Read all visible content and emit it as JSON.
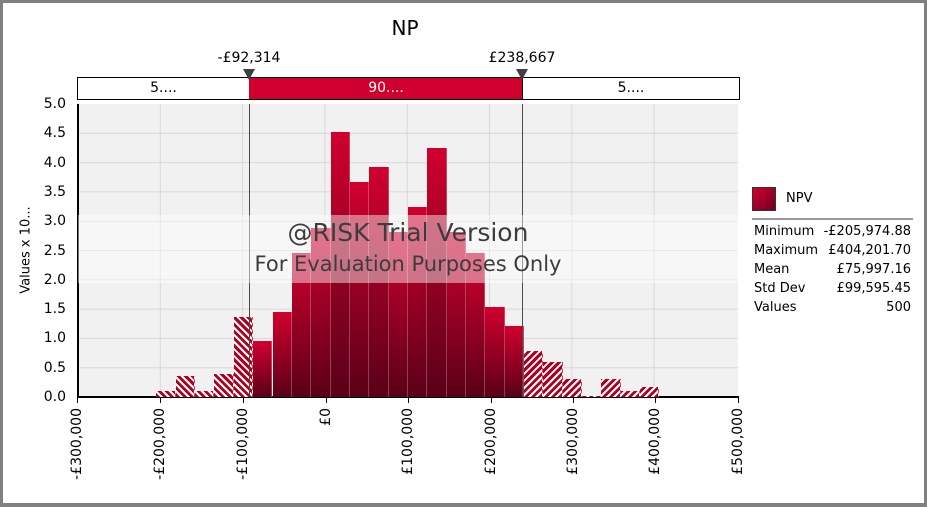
{
  "chart_data": {
    "type": "bar",
    "title": "NP",
    "xlabel": "",
    "ylabel": "Values x 10...",
    "xlim": [
      -300000,
      500000
    ],
    "ylim": [
      0,
      5.0
    ],
    "grid": true,
    "legend_position": "right",
    "x_tick_labels": [
      "-£300,000",
      "-£200,000",
      "-£100,000",
      "£0",
      "£100,000",
      "£200,000",
      "£300,000",
      "£400,000",
      "£500,000"
    ],
    "x_tick_values": [
      -300000,
      -200000,
      -100000,
      0,
      100000,
      200000,
      300000,
      400000,
      500000
    ],
    "y_tick_labels": [
      "0.0",
      "0.5",
      "1.0",
      "1.5",
      "2.0",
      "2.5",
      "3.0",
      "3.5",
      "4.0",
      "4.5",
      "5.0"
    ],
    "bin_start": -206000,
    "bin_width": 23500,
    "series": [
      {
        "name": "NPV",
        "values": [
          0.1,
          0.35,
          0.1,
          0.4,
          1.37,
          0.95,
          1.45,
          2.45,
          2.88,
          4.52,
          3.67,
          3.93,
          2.82,
          3.24,
          4.25,
          2.82,
          2.45,
          1.53,
          1.21,
          0.78,
          0.6,
          0.3,
          0.02,
          0.3,
          0.1,
          0.17
        ]
      }
    ],
    "delimiters": {
      "left_value": "-£92,314",
      "right_value": "£238,667",
      "left_pct_label": "5....",
      "middle_pct_label": "90....",
      "right_pct_label": "5...."
    },
    "annotations": [
      "@RISK Trial Version",
      "For Evaluation Purposes Only"
    ],
    "statistics": {
      "Minimum": "-£205,974.88",
      "Maximum": "£404,201.70",
      "Mean": "£75,997.16",
      "Std Dev": "£99,595.45",
      "Values": "500"
    }
  },
  "header": {
    "title": "NP"
  },
  "delimiter_bar": {
    "left_marker": "-£92,314",
    "right_marker": "£238,667",
    "left_segment": "5....",
    "middle_segment": "90....",
    "right_segment": "5...."
  },
  "axis": {
    "ylabel": "Values x 10...",
    "yticks": [
      "5.0",
      "4.5",
      "4.0",
      "3.5",
      "3.0",
      "2.5",
      "2.0",
      "1.5",
      "1.0",
      "0.5",
      "0.0"
    ],
    "xticks": [
      "-£300,000",
      "-£200,000",
      "-£100,000",
      "£0",
      "£100,000",
      "£200,000",
      "£300,000",
      "£400,000",
      "£500,000"
    ]
  },
  "watermark": {
    "line1": "@RISK Trial Version",
    "line2": "For Evaluation Purposes Only"
  },
  "legend": {
    "series_name": "NPV",
    "stats": [
      {
        "label": "Minimum",
        "value": "-£205,974.88"
      },
      {
        "label": "Maximum",
        "value": "£404,201.70"
      },
      {
        "label": "Mean",
        "value": "£75,997.16"
      },
      {
        "label": "Std Dev",
        "value": "£99,595.45"
      },
      {
        "label": "Values",
        "value": "500"
      }
    ]
  },
  "colors": {
    "bar_top": "#d0002e",
    "bar_bottom": "#5a0018",
    "plot_bg": "#f1f1f1",
    "frame": "#808080"
  }
}
